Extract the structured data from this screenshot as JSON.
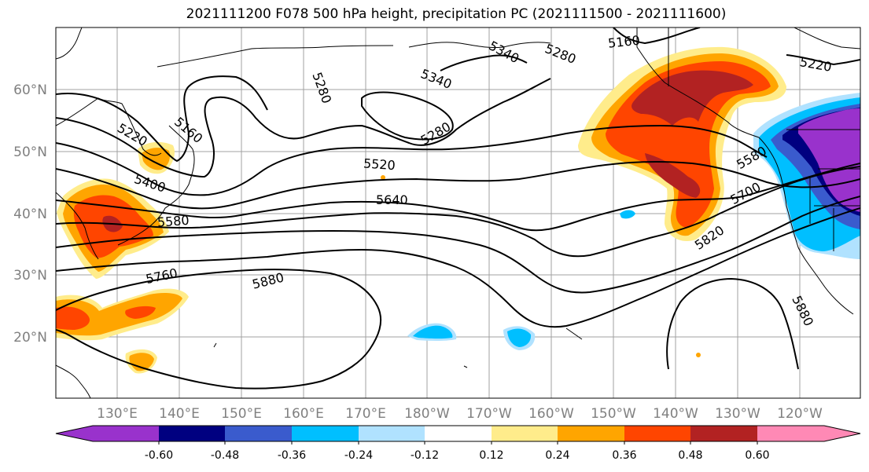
{
  "title": "2021111200 F078 500 hPa height, precipitation PC (2021111500 - 2021111600)",
  "map": {
    "lon_labels": [
      "130°E",
      "140°E",
      "150°E",
      "160°E",
      "170°E",
      "180°W",
      "170°W",
      "160°W",
      "150°W",
      "140°W",
      "130°W",
      "120°W"
    ],
    "lat_labels": [
      "60°N",
      "50°N",
      "40°N",
      "30°N",
      "20°N"
    ],
    "contour_labels": [
      "5160",
      "5220",
      "5220",
      "5280",
      "5280",
      "5280",
      "5340",
      "5340",
      "5160",
      "5400",
      "5520",
      "5580",
      "5640",
      "5700",
      "5580",
      "5760",
      "5820",
      "5880",
      "5880"
    ]
  },
  "colorbar": {
    "colors": [
      "#9932cc",
      "#000080",
      "#3a5bcd",
      "#00bfff",
      "#b0e2ff",
      "#ffffff",
      "#ffec8b",
      "#ffa500",
      "#ff4500",
      "#b22222",
      "#ff89b5"
    ],
    "tick_labels": [
      "-0.60",
      "-0.48",
      "-0.36",
      "-0.24",
      "-0.12",
      "0.12",
      "0.24",
      "0.36",
      "0.48",
      "0.60"
    ]
  }
}
